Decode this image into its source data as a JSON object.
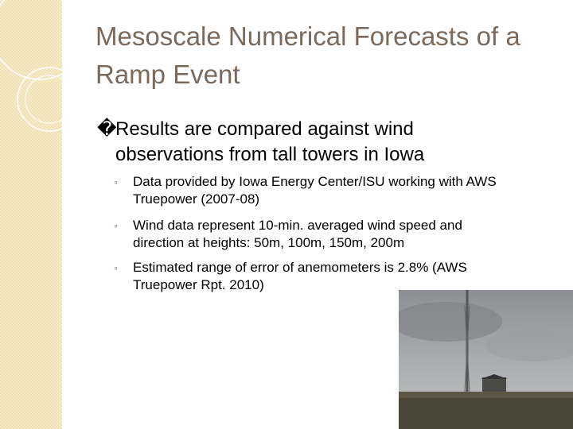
{
  "title": "Mesoscale Numerical Forecasts of a Ramp Event",
  "main_point": {
    "marker": "�",
    "text": "Results are compared against wind observations from tall towers in Iowa"
  },
  "sub_points": {
    "marker": "◦",
    "items": [
      "Data provided by Iowa Energy Center/ISU working with AWS Truepower (2007-08)",
      "Wind data represent 10-min. averaged wind speed and direction at heights:  50m, 100m, 150m, 200m",
      "Estimated range of error of anemometers is 2.8% (AWS Truepower Rpt. 2010)"
    ]
  }
}
